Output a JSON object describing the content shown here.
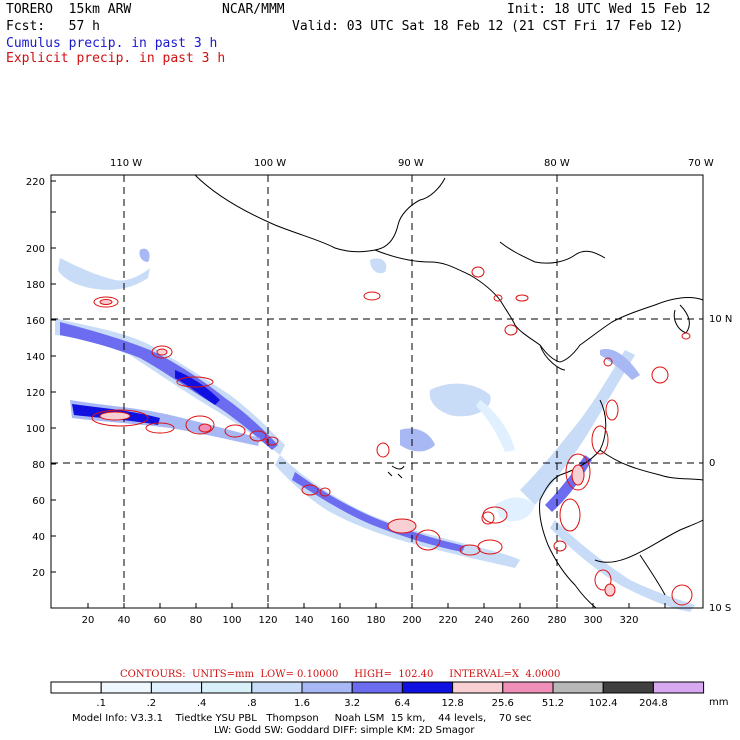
{
  "header": {
    "model": "TORERO  15km ARW",
    "org": "NCAR/MMM",
    "init": "Init: 18 UTC Wed 15 Feb 12",
    "fcst": "Fcst:   57 h",
    "valid": "Valid: 03 UTC Sat 18 Feb 12 (21 CST Fri 17 Feb 12)",
    "field1": "Cumulus precip. in past 3 h",
    "field2": "Explicit precip. in past 3 h"
  },
  "map": {
    "lon_labels": [
      "110 W",
      "100 W",
      "90 W",
      "80 W",
      "70 W"
    ],
    "lat_labels": [
      "10 N",
      "0",
      "10 S"
    ],
    "x_ticks": [
      "20",
      "40",
      "60",
      "80",
      "100",
      "120",
      "140",
      "160",
      "180",
      "200",
      "220",
      "240",
      "260",
      "280",
      "300",
      "320"
    ],
    "y_ticks": [
      "20",
      "40",
      "60",
      "80",
      "100",
      "120",
      "140",
      "160",
      "180",
      "200",
      "220"
    ]
  },
  "contour_info": {
    "label": "CONTOURS:  UNITS=mm  LOW= 0.10000     HIGH=  102.40     INTERVAL=X  4.0000"
  },
  "colorbar": {
    "labels": [
      ".1",
      ".2",
      ".4",
      ".8",
      "1.6",
      "3.2",
      "6.4",
      "12.8",
      "25.6",
      "51.2",
      "102.4",
      "204.8"
    ],
    "units": "mm",
    "colors": [
      "#ffffff",
      "#f0f8ff",
      "#e0f0ff",
      "#d8f0f8",
      "#c8dcf8",
      "#a8b8f4",
      "#6c6cf0",
      "#1010e0",
      "#f8d0d4",
      "#f090b8",
      "#b8b8b8",
      "#404040",
      "#d8a8f0"
    ]
  },
  "footer": {
    "line1": "Model Info: V3.3.1    Tiedtke YSU PBL   Thompson     Noah LSM  15 km,    44 levels,    70 sec",
    "line2": "LW: Godd SW: Goddard DIFF: simple KM: 2D Smagor"
  }
}
